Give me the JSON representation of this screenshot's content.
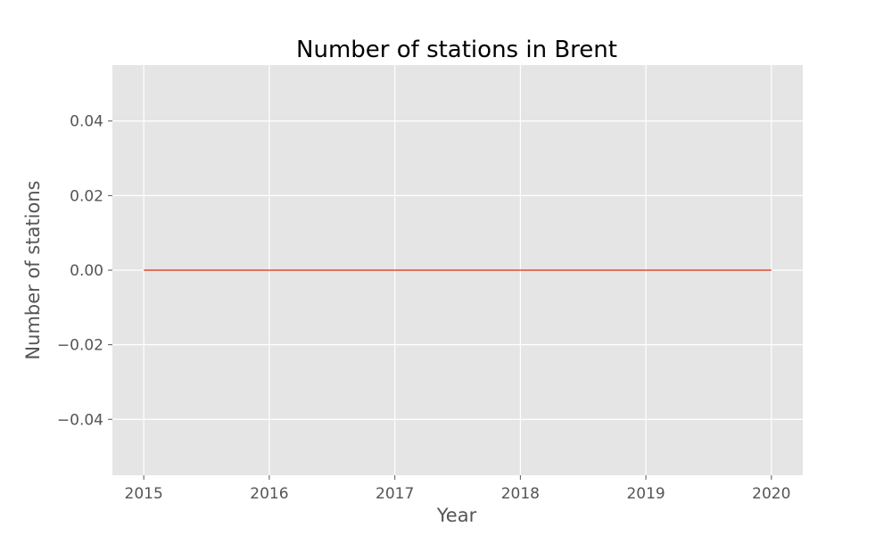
{
  "chart_data": {
    "type": "line",
    "title": "Number of stations in Brent",
    "xlabel": "Year",
    "ylabel": "Number of stations",
    "x": [
      2015,
      2016,
      2017,
      2018,
      2019,
      2020
    ],
    "series": [
      {
        "values": [
          0,
          0,
          0,
          0,
          0,
          0
        ]
      }
    ],
    "xlim": [
      2014.75,
      2020.25
    ],
    "ylim": [
      -0.055,
      0.055
    ],
    "xticks": [
      2015,
      2016,
      2017,
      2018,
      2019,
      2020
    ],
    "xtick_labels": [
      "2015",
      "2016",
      "2017",
      "2018",
      "2019",
      "2020"
    ],
    "yticks": [
      -0.04,
      -0.02,
      0.0,
      0.02,
      0.04
    ],
    "ytick_labels": [
      "−0.04",
      "−0.02",
      "0.00",
      "0.02",
      "0.04"
    ],
    "grid": true,
    "colors": {
      "plot_background": "#e5e5e5",
      "grid": "#ffffff",
      "line": "#e24a33",
      "tick": "#555555"
    }
  }
}
